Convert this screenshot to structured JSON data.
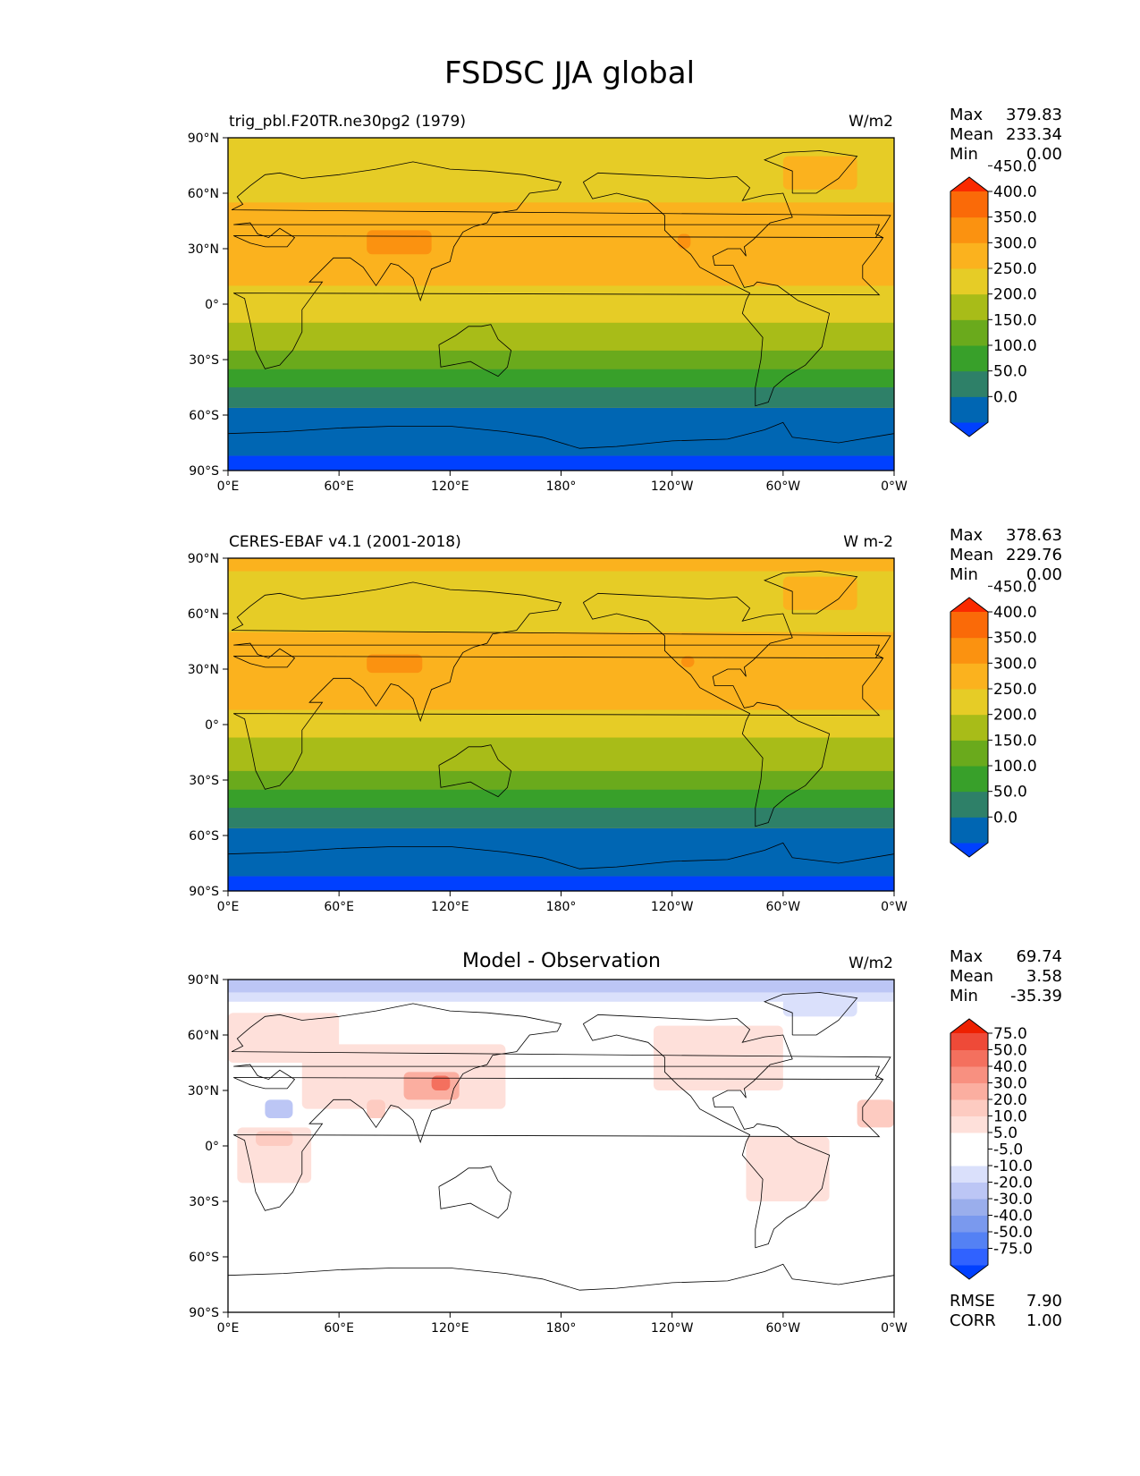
{
  "title": "FSDSC JJA global",
  "colors": {
    "abs": [
      "#0040ff",
      "#0066b3",
      "#2e8068",
      "#38a02a",
      "#6aaa1c",
      "#a8bc18",
      "#e6cc26",
      "#fbb21e",
      "#fb9210",
      "#fa6a08",
      "#fa2a00"
    ],
    "diff": [
      "#0040ff",
      "#3062ff",
      "#5481f4",
      "#7a99ee",
      "#9aaeec",
      "#bcc6f5",
      "#dae0fb",
      "#ffffff",
      "#ffffff",
      "#fee0da",
      "#fdcbc1",
      "#fbaea0",
      "#f89080",
      "#f4705e",
      "#ee4a38",
      "#ee2000"
    ],
    "coast": "#000000"
  },
  "chart_data": [
    {
      "type": "heatmap",
      "title": "trig_pbl.F20TR.ne30pg2 (1979)",
      "units": "W/m2",
      "stats": {
        "max_label": "Max",
        "max": "379.83",
        "mean_label": "Mean",
        "mean": "233.34",
        "min_label": "Min",
        "min": "0.00"
      },
      "x_ticks": [
        "0°E",
        "60°E",
        "120°E",
        "180°",
        "120°W",
        "60°W",
        "0°W"
      ],
      "y_ticks": [
        "90°N",
        "60°N",
        "30°N",
        "0°",
        "30°S",
        "60°S",
        "90°S"
      ],
      "xlim": [
        0,
        360
      ],
      "ylim": [
        -90,
        90
      ],
      "colorbar_levels": [
        "0.0",
        "50.0",
        "100.0",
        "150.0",
        "200.0",
        "250.0",
        "300.0",
        "350.0",
        "400.0",
        "450.0"
      ],
      "zonal_bands": [
        {
          "lat": [
            -90,
            -82
          ],
          "value": -1
        },
        {
          "lat": [
            -82,
            -56
          ],
          "value": 30
        },
        {
          "lat": [
            -56,
            -45
          ],
          "value": 80
        },
        {
          "lat": [
            -45,
            -35
          ],
          "value": 130
        },
        {
          "lat": [
            -35,
            -25
          ],
          "value": 180
        },
        {
          "lat": [
            -25,
            -10
          ],
          "value": 230
        },
        {
          "lat": [
            -10,
            10
          ],
          "value": 280
        },
        {
          "lat": [
            10,
            55
          ],
          "value": 320
        },
        {
          "lat": [
            55,
            90
          ],
          "value": 290
        }
      ],
      "hotspots": [
        {
          "lon": [
            75,
            110
          ],
          "lat": [
            27,
            40
          ],
          "value": 360
        },
        {
          "lon": [
            243,
            250
          ],
          "lat": [
            30,
            38
          ],
          "value": 360
        },
        {
          "lon": [
            300,
            340
          ],
          "lat": [
            62,
            80
          ],
          "value": 320
        }
      ]
    },
    {
      "type": "heatmap",
      "title": "CERES-EBAF v4.1 (2001-2018)",
      "units": "W m-2",
      "stats": {
        "max_label": "Max",
        "max": "378.63",
        "mean_label": "Mean",
        "mean": "229.76",
        "min_label": "Min",
        "min": "0.00"
      },
      "x_ticks": [
        "0°E",
        "60°E",
        "120°E",
        "180°",
        "120°W",
        "60°W",
        "0°W"
      ],
      "y_ticks": [
        "90°N",
        "60°N",
        "30°N",
        "0°",
        "30°S",
        "60°S",
        "90°S"
      ],
      "xlim": [
        0,
        360
      ],
      "ylim": [
        -90,
        90
      ],
      "colorbar_levels": [
        "0.0",
        "50.0",
        "100.0",
        "150.0",
        "200.0",
        "250.0",
        "300.0",
        "350.0",
        "400.0",
        "450.0"
      ],
      "zonal_bands": [
        {
          "lat": [
            -90,
            -82
          ],
          "value": -1
        },
        {
          "lat": [
            -82,
            -56
          ],
          "value": 30
        },
        {
          "lat": [
            -56,
            -45
          ],
          "value": 80
        },
        {
          "lat": [
            -45,
            -35
          ],
          "value": 130
        },
        {
          "lat": [
            -35,
            -25
          ],
          "value": 180
        },
        {
          "lat": [
            -25,
            -7
          ],
          "value": 230
        },
        {
          "lat": [
            -7,
            8
          ],
          "value": 280
        },
        {
          "lat": [
            8,
            50
          ],
          "value": 320
        },
        {
          "lat": [
            50,
            83
          ],
          "value": 290
        },
        {
          "lat": [
            83,
            90
          ],
          "value": 320
        }
      ],
      "hotspots": [
        {
          "lon": [
            75,
            105
          ],
          "lat": [
            28,
            38
          ],
          "value": 360
        },
        {
          "lon": [
            245,
            252
          ],
          "lat": [
            31,
            37
          ],
          "value": 360
        },
        {
          "lon": [
            300,
            340
          ],
          "lat": [
            62,
            80
          ],
          "value": 320
        }
      ]
    },
    {
      "type": "heatmap",
      "title": "Model - Observation",
      "units": "W/m2",
      "stats": {
        "max_label": "Max",
        "max": "69.74",
        "mean_label": "Mean",
        "mean": "3.58",
        "min_label": "Min",
        "min": "-35.39"
      },
      "extra_stats": {
        "rmse_label": "RMSE",
        "rmse": "7.90",
        "corr_label": "CORR",
        "corr": "1.00"
      },
      "x_ticks": [
        "0°E",
        "60°E",
        "120°E",
        "180°",
        "120°W",
        "60°W",
        "0°W"
      ],
      "y_ticks": [
        "90°N",
        "60°N",
        "30°N",
        "0°",
        "30°S",
        "60°S",
        "90°S"
      ],
      "xlim": [
        0,
        360
      ],
      "ylim": [
        -90,
        90
      ],
      "colorbar_levels": [
        "-75.0",
        "-50.0",
        "-40.0",
        "-30.0",
        "-20.0",
        "-10.0",
        "-5.0",
        "5.0",
        "10.0",
        "20.0",
        "30.0",
        "40.0",
        "50.0",
        "75.0"
      ],
      "zonal_bands": [
        {
          "lat": [
            83,
            90
          ],
          "value": -12
        },
        {
          "lat": [
            78,
            83
          ],
          "value": -7
        },
        {
          "lat": [
            8,
            25
          ],
          "value": 7
        }
      ],
      "hotspots": [
        {
          "lon": [
            0,
            60
          ],
          "lat": [
            45,
            72
          ],
          "value": 12
        },
        {
          "lon": [
            40,
            150
          ],
          "lat": [
            20,
            55
          ],
          "value": 15
        },
        {
          "lon": [
            95,
            125
          ],
          "lat": [
            25,
            40
          ],
          "value": 35
        },
        {
          "lon": [
            110,
            120
          ],
          "lat": [
            30,
            38
          ],
          "value": 55
        },
        {
          "lon": [
            5,
            45
          ],
          "lat": [
            -20,
            10
          ],
          "value": 12
        },
        {
          "lon": [
            15,
            35
          ],
          "lat": [
            0,
            8
          ],
          "value": 22
        },
        {
          "lon": [
            20,
            35
          ],
          "lat": [
            15,
            25
          ],
          "value": -12
        },
        {
          "lon": [
            75,
            85
          ],
          "lat": [
            15,
            25
          ],
          "value": 22
        },
        {
          "lon": [
            280,
            325
          ],
          "lat": [
            -30,
            5
          ],
          "value": 15
        },
        {
          "lon": [
            230,
            300
          ],
          "lat": [
            30,
            65
          ],
          "value": 12
        },
        {
          "lon": [
            340,
            360
          ],
          "lat": [
            10,
            25
          ],
          "value": 25
        },
        {
          "lon": [
            120,
            180
          ],
          "lat": [
            -10,
            8
          ],
          "value": 7
        },
        {
          "lon": [
            300,
            340
          ],
          "lat": [
            70,
            80
          ],
          "value": -7
        }
      ]
    }
  ]
}
